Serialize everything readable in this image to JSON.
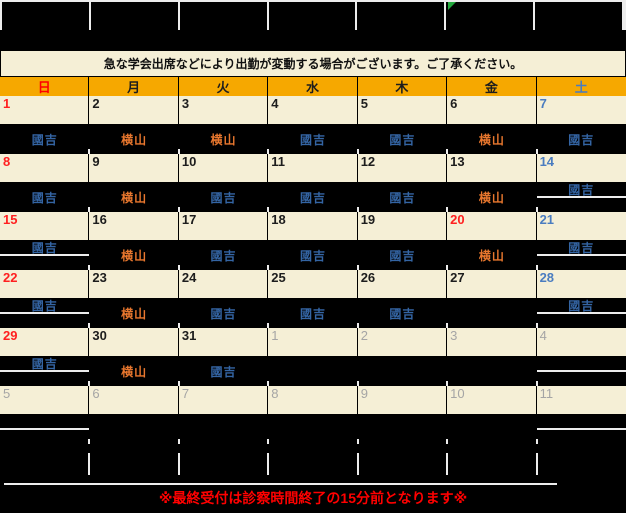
{
  "colors": {
    "red": "#FF2020",
    "header_red": "#FF0000",
    "black": "#1D1D1D",
    "sat_blue": "#4A7CC0",
    "gray": "#A5A5A5",
    "name_blue": "#3465A4",
    "name_orange": "#E8772E",
    "cream": "#F5EFD6",
    "header_orange": "#F6A800",
    "grid_white": "#ECECEC",
    "marker_green": "#22A73C"
  },
  "notice": {
    "text": "急な学会出席などにより出勤が変動する場合がございます。ご了承ください。"
  },
  "day_headers": [
    {
      "label": "日",
      "color": "header_red"
    },
    {
      "label": "月",
      "color": "black"
    },
    {
      "label": "火",
      "color": "black"
    },
    {
      "label": "水",
      "color": "black"
    },
    {
      "label": "木",
      "color": "black"
    },
    {
      "label": "金",
      "color": "black"
    },
    {
      "label": "土",
      "color": "sat_blue"
    }
  ],
  "weeks": [
    {
      "days": [
        {
          "date": "1",
          "dc": "red",
          "name": "國吉",
          "nc": "name_blue",
          "split": false
        },
        {
          "date": "2",
          "dc": "black",
          "name": "横山",
          "nc": "name_orange",
          "split": false
        },
        {
          "date": "3",
          "dc": "black",
          "name": "横山",
          "nc": "name_orange",
          "split": false
        },
        {
          "date": "4",
          "dc": "black",
          "name": "國吉",
          "nc": "name_blue",
          "split": false
        },
        {
          "date": "5",
          "dc": "black",
          "name": "國吉",
          "nc": "name_blue",
          "split": false
        },
        {
          "date": "6",
          "dc": "black",
          "name": "横山",
          "nc": "name_orange",
          "split": false
        },
        {
          "date": "7",
          "dc": "sat_blue",
          "name": "國吉",
          "nc": "name_blue",
          "split": false
        }
      ]
    },
    {
      "days": [
        {
          "date": "8",
          "dc": "red",
          "name": "國吉",
          "nc": "name_blue",
          "split": false
        },
        {
          "date": "9",
          "dc": "black",
          "name": "横山",
          "nc": "name_orange",
          "split": false
        },
        {
          "date": "10",
          "dc": "black",
          "name": "國吉",
          "nc": "name_blue",
          "split": false
        },
        {
          "date": "11",
          "dc": "black",
          "name": "國吉",
          "nc": "name_blue",
          "split": false
        },
        {
          "date": "12",
          "dc": "black",
          "name": "國吉",
          "nc": "name_blue",
          "split": false
        },
        {
          "date": "13",
          "dc": "black",
          "name": "横山",
          "nc": "name_orange",
          "split": false
        },
        {
          "date": "14",
          "dc": "sat_blue",
          "name": "國吉",
          "nc": "name_blue",
          "split": true
        }
      ]
    },
    {
      "days": [
        {
          "date": "15",
          "dc": "red",
          "name": "國吉",
          "nc": "name_blue",
          "split": true
        },
        {
          "date": "16",
          "dc": "black",
          "name": "横山",
          "nc": "name_orange",
          "split": false
        },
        {
          "date": "17",
          "dc": "black",
          "name": "國吉",
          "nc": "name_blue",
          "split": false
        },
        {
          "date": "18",
          "dc": "black",
          "name": "國吉",
          "nc": "name_blue",
          "split": false
        },
        {
          "date": "19",
          "dc": "black",
          "name": "國吉",
          "nc": "name_blue",
          "split": false
        },
        {
          "date": "20",
          "dc": "red",
          "name": "横山",
          "nc": "name_orange",
          "split": false
        },
        {
          "date": "21",
          "dc": "sat_blue",
          "name": "國吉",
          "nc": "name_blue",
          "split": true
        }
      ]
    },
    {
      "days": [
        {
          "date": "22",
          "dc": "red",
          "name": "國吉",
          "nc": "name_blue",
          "split": true
        },
        {
          "date": "23",
          "dc": "black",
          "name": "横山",
          "nc": "name_orange",
          "split": false
        },
        {
          "date": "24",
          "dc": "black",
          "name": "國吉",
          "nc": "name_blue",
          "split": false
        },
        {
          "date": "25",
          "dc": "black",
          "name": "國吉",
          "nc": "name_blue",
          "split": false
        },
        {
          "date": "26",
          "dc": "black",
          "name": "國吉",
          "nc": "name_blue",
          "split": false
        },
        {
          "date": "27",
          "dc": "black",
          "name": "",
          "nc": "",
          "split": false
        },
        {
          "date": "28",
          "dc": "sat_blue",
          "name": "國吉",
          "nc": "name_blue",
          "split": true
        }
      ]
    },
    {
      "days": [
        {
          "date": "29",
          "dc": "red",
          "name": "國吉",
          "nc": "name_blue",
          "split": true
        },
        {
          "date": "30",
          "dc": "black",
          "name": "横山",
          "nc": "name_orange",
          "split": false
        },
        {
          "date": "31",
          "dc": "black",
          "name": "國吉",
          "nc": "name_blue",
          "split": false
        },
        {
          "date": "1",
          "dc": "gray",
          "name": "",
          "nc": "",
          "split": false
        },
        {
          "date": "2",
          "dc": "gray",
          "name": "",
          "nc": "",
          "split": false
        },
        {
          "date": "3",
          "dc": "gray",
          "name": "",
          "nc": "",
          "split": false
        },
        {
          "date": "4",
          "dc": "gray",
          "name": "",
          "nc": "",
          "split": true
        }
      ]
    },
    {
      "days": [
        {
          "date": "5",
          "dc": "gray",
          "name": "",
          "nc": "",
          "split": true
        },
        {
          "date": "6",
          "dc": "gray",
          "name": "",
          "nc": "",
          "split": false
        },
        {
          "date": "7",
          "dc": "gray",
          "name": "",
          "nc": "",
          "split": false
        },
        {
          "date": "8",
          "dc": "gray",
          "name": "",
          "nc": "",
          "split": false
        },
        {
          "date": "9",
          "dc": "gray",
          "name": "",
          "nc": "",
          "split": false
        },
        {
          "date": "10",
          "dc": "gray",
          "name": "",
          "nc": "",
          "split": false
        },
        {
          "date": "11",
          "dc": "gray",
          "name": "",
          "nc": "",
          "split": true
        }
      ]
    }
  ],
  "footer": {
    "text": "※最終受付は診察時間終了の15分前となります※"
  }
}
